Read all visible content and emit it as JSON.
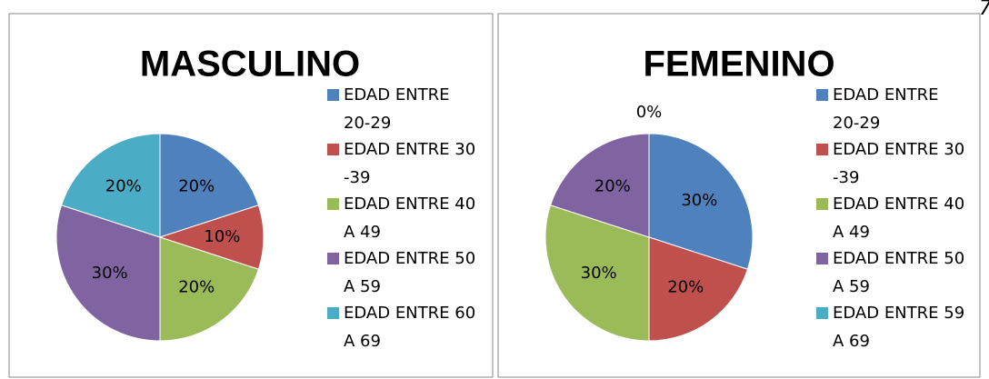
{
  "page_number": "7",
  "chart_data": [
    {
      "type": "pie",
      "title": "MASCULINO",
      "categories": [
        "EDAD ENTRE 20-29",
        "EDAD ENTRE 30 -39",
        "EDAD ENTRE 40 A 49",
        "EDAD ENTRE 50 A 59",
        "EDAD ENTRE 60 A 69"
      ],
      "values": [
        20,
        10,
        20,
        30,
        20
      ],
      "value_labels": [
        "20%",
        "10%",
        "20%",
        "30%",
        "20%"
      ],
      "colors": [
        "#4f81bd",
        "#c0504d",
        "#9bbb59",
        "#8064a2",
        "#4bacc6"
      ],
      "legend": "right"
    },
    {
      "type": "pie",
      "title": "FEMENINO",
      "categories": [
        "EDAD ENTRE 20-29",
        "EDAD ENTRE 30 -39",
        "EDAD ENTRE 40 A 49",
        "EDAD ENTRE 50 A 59",
        "EDAD ENTRE 59 A 69"
      ],
      "values": [
        30,
        20,
        30,
        20,
        0
      ],
      "value_labels": [
        "30%",
        "20%",
        "30%",
        "20%",
        "0%"
      ],
      "colors": [
        "#4f81bd",
        "#c0504d",
        "#9bbb59",
        "#8064a2",
        "#4bacc6"
      ],
      "legend": "right"
    }
  ]
}
